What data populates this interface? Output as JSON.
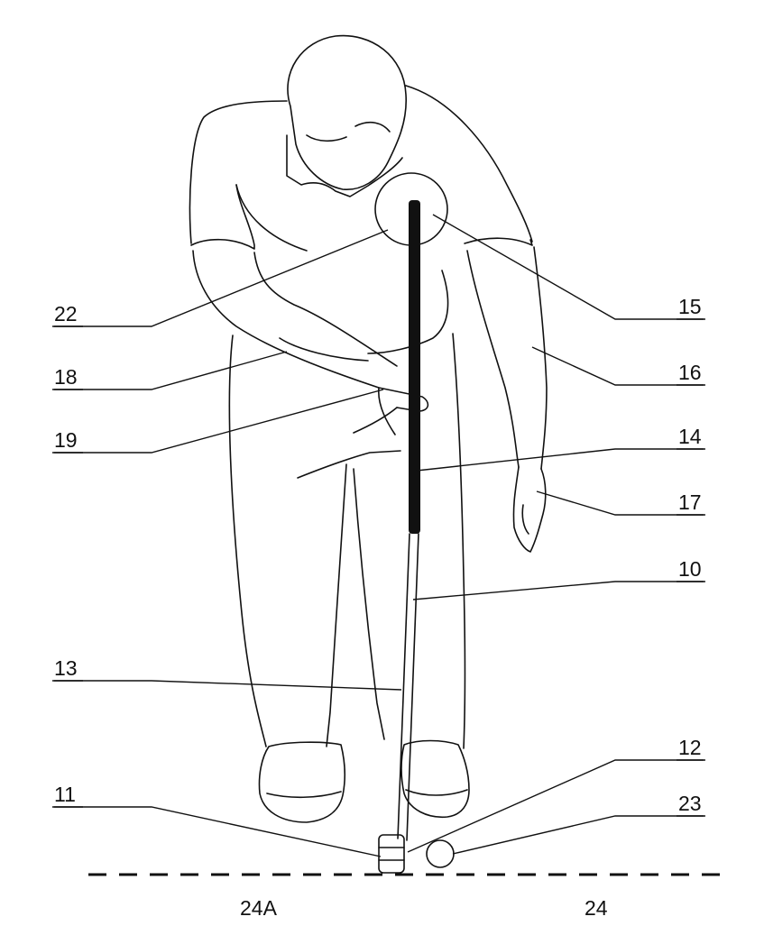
{
  "figure": {
    "labels": {
      "l22": "22",
      "l18": "18",
      "l19": "19",
      "l13": "13",
      "l11": "11",
      "l15": "15",
      "l16": "16",
      "l14": "14",
      "l17": "17",
      "l10": "10",
      "l12": "12",
      "l23": "23"
    },
    "ground": {
      "left_label": "24A",
      "right_label": "24"
    }
  }
}
